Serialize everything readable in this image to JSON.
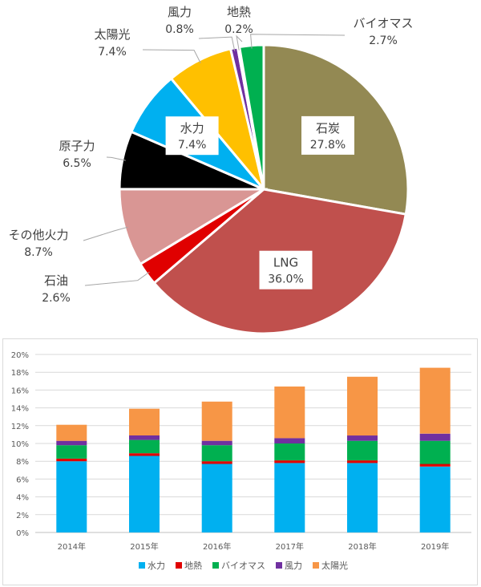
{
  "chart_data": [
    {
      "type": "pie",
      "slices": [
        {
          "label": "石炭",
          "value": 27.8,
          "value_label": "27.8%",
          "color": "#938953"
        },
        {
          "label": "LNG",
          "value": 36.0,
          "value_label": "36.0%",
          "color": "#c0504d"
        },
        {
          "label": "石油",
          "value": 2.6,
          "value_label": "2.6%",
          "color": "#e00000"
        },
        {
          "label": "その他火力",
          "value": 8.7,
          "value_label": "8.7%",
          "color": "#d99694"
        },
        {
          "label": "原子力",
          "value": 6.5,
          "value_label": "6.5%",
          "color": "#000000"
        },
        {
          "label": "水力",
          "value": 7.4,
          "value_label": "7.4%",
          "color": "#00b0f0"
        },
        {
          "label": "太陽光",
          "value": 7.4,
          "value_label": "7.4%",
          "color": "#ffc000"
        },
        {
          "label": "風力",
          "value": 0.8,
          "value_label": "0.8%",
          "color": "#7030a0"
        },
        {
          "label": "地熱",
          "value": 0.2,
          "value_label": "0.2%",
          "color": "#ffffff"
        },
        {
          "label": "バイオマス",
          "value": 2.7,
          "value_label": "2.7%",
          "color": "#00b050"
        }
      ]
    },
    {
      "type": "bar",
      "stacked": true,
      "categories": [
        "2014年",
        "2015年",
        "2016年",
        "2017年",
        "2018年",
        "2019年"
      ],
      "series": [
        {
          "name": "水力",
          "color": "#00b0f0",
          "values": [
            8.0,
            8.6,
            7.7,
            7.8,
            7.8,
            7.4
          ]
        },
        {
          "name": "地熱",
          "color": "#e00000",
          "values": [
            0.3,
            0.3,
            0.3,
            0.3,
            0.3,
            0.3
          ]
        },
        {
          "name": "バイオマス",
          "color": "#00b050",
          "values": [
            1.5,
            1.5,
            1.8,
            1.9,
            2.2,
            2.6
          ]
        },
        {
          "name": "風力",
          "color": "#7030a0",
          "values": [
            0.5,
            0.5,
            0.5,
            0.6,
            0.6,
            0.8
          ]
        },
        {
          "name": "太陽光",
          "color": "#f79646",
          "values": [
            1.8,
            3.0,
            4.4,
            5.8,
            6.6,
            7.4
          ]
        }
      ],
      "ylim": [
        0,
        20
      ],
      "yticks": [
        "0%",
        "2%",
        "4%",
        "6%",
        "8%",
        "10%",
        "12%",
        "14%",
        "16%",
        "18%",
        "20%"
      ],
      "grid": true,
      "legend_position": "bottom"
    }
  ]
}
